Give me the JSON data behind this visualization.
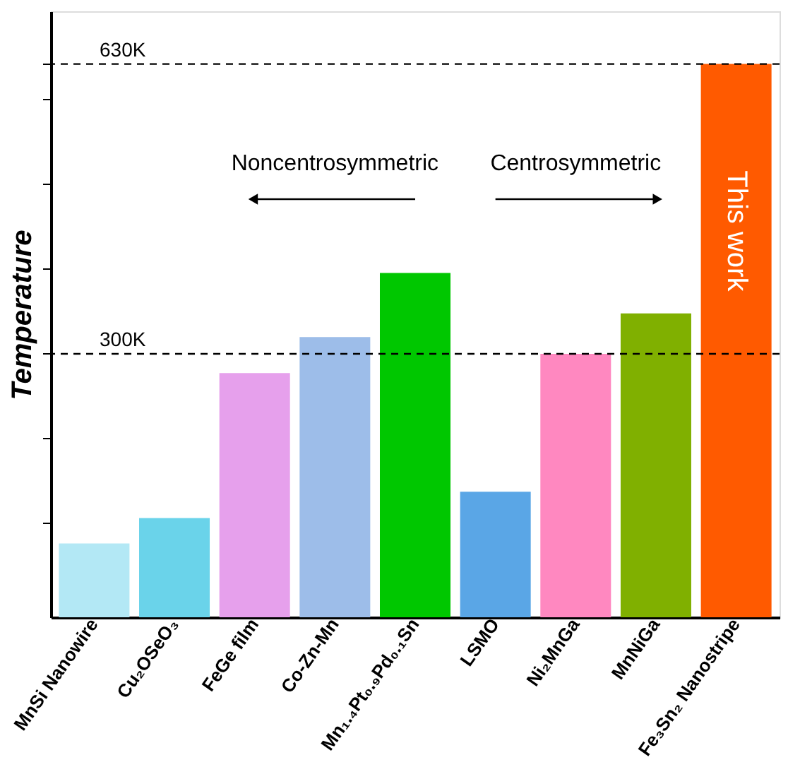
{
  "chart_data": {
    "type": "bar",
    "ylabel": "Temperature",
    "categories": [
      "MnSi Nanowire",
      "Cu₂OSeO₃",
      "FeGe film",
      "Co-Zn-Mn",
      "Mn₁.₄Pt₀.₉Pd₀.₁Sn",
      "LSMO",
      "Ni₂MnGa",
      "MnNiGa",
      "Fe₃Sn₂ Nanostripe"
    ],
    "values": [
      84,
      113,
      278,
      319,
      392,
      143,
      300,
      346,
      630
    ],
    "colors": [
      "#b3e8f5",
      "#6ad3ea",
      "#e6a0ec",
      "#9dbde9",
      "#00c700",
      "#5aa6e6",
      "#ff88c0",
      "#80b000",
      "#ff5a00"
    ],
    "ylim": [
      0,
      690
    ],
    "yticks": [
      {
        "value": 108,
        "label": null
      },
      {
        "value": 205,
        "label": null
      },
      {
        "value": 300,
        "label": "300K"
      },
      {
        "value": 397,
        "label": null
      },
      {
        "value": 494,
        "label": null
      },
      {
        "value": 591,
        "label": null
      },
      {
        "value": 630,
        "label": "630K"
      }
    ],
    "grid": false,
    "ref_lines": [
      {
        "axis": "y",
        "value": 630,
        "line_style": "dashed"
      },
      {
        "axis": "y",
        "value": 300,
        "line_style": "dashed"
      }
    ],
    "annotations": [
      "Noncentrosymmetric",
      "Centrosymmetric",
      {
        "text": "This work",
        "x": "Fe₃Sn₂ Nanostripe",
        "y": 440
      }
    ]
  }
}
